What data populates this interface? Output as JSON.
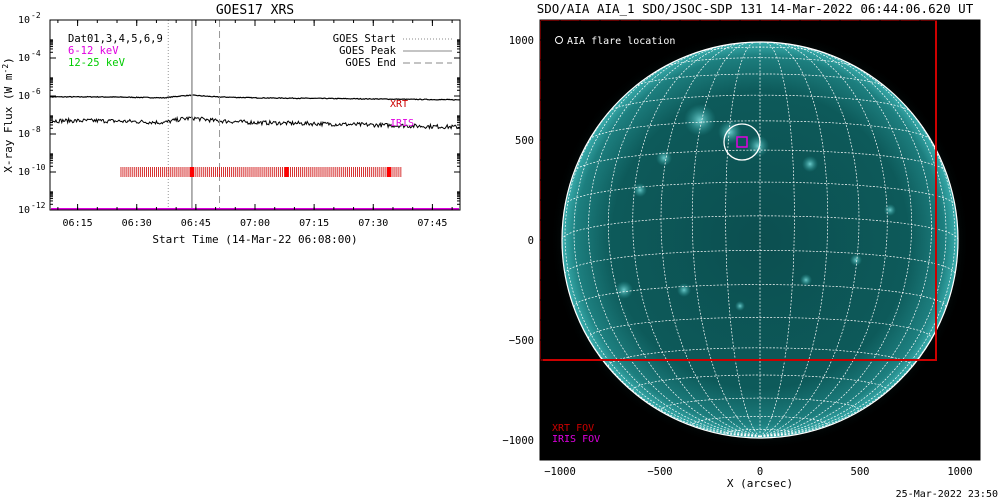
{
  "goes_panel": {
    "title": "GOES17 XRS",
    "xlabel": "Start Time (14-Mar-22 06:08:00)",
    "ylabel": "X-ray Flux (W m",
    "ylabel_sup": "-2",
    "ylabel_close": ")",
    "legend_left": [
      {
        "text": "Dat01,3,4,5,6,9",
        "color": "#000000"
      },
      {
        "text": "6-12 keV",
        "color": "#e000e0"
      },
      {
        "text": "12-25 keV",
        "color": "#00cc00"
      }
    ],
    "legend_right": [
      {
        "text": "GOES Start",
        "style": "dotted"
      },
      {
        "text": "GOES Peak",
        "style": "solid"
      },
      {
        "text": "GOES End",
        "style": "dashed"
      }
    ],
    "curve_labels": {
      "xrt": "XRT",
      "iris": "IRIS"
    },
    "colors": {
      "xrt": "#cc0000",
      "iris": "#e000e0",
      "event_lines": "#999999",
      "flux": "#000000"
    }
  },
  "aia_panel": {
    "title": "SDO/AIA AIA_1 SDO/JSOC-SDP 131 14-Mar-2022 06:44:06.620 UT",
    "flare_legend": "AIA flare location",
    "xlabel": "X (arcsec)",
    "fov_labels": {
      "xrt": "XRT FOV",
      "iris": "IRIS FOV"
    },
    "timestamp": "25-Mar-2022 23:50",
    "colors": {
      "disk": "#0a5a5a",
      "glow": "#3fbfbf",
      "grid": "#ffffff",
      "xrt_fov": "#cc0000",
      "iris_fov": "#e000e0"
    }
  },
  "chart_data": [
    {
      "type": "line",
      "title": "GOES17 XRS",
      "xlabel": "Start Time (14-Mar-22 06:08:00)",
      "ylabel": "X-ray Flux (W m^-2)",
      "y_scale": "log",
      "xlim": [
        "06:08",
        "07:52"
      ],
      "ylim": [
        1e-12,
        0.01
      ],
      "x_ticks": [
        "06:15",
        "06:30",
        "06:45",
        "07:00",
        "07:15",
        "07:30",
        "07:45"
      ],
      "y_ticks": [
        "10^-12",
        "10^-10",
        "10^-8",
        "10^-6",
        "10^-4",
        "10^-2"
      ],
      "series": [
        {
          "name": "6-12 keV",
          "x": [
            "06:08",
            "06:20",
            "06:30",
            "06:37",
            "06:41",
            "06:44",
            "06:50",
            "07:00",
            "07:15",
            "07:30",
            "07:45",
            "07:52"
          ],
          "values": [
            9e-07,
            9e-07,
            8.5e-07,
            8e-07,
            1e-06,
            1.1e-06,
            9e-07,
            8e-07,
            7.5e-07,
            7e-07,
            6.5e-07,
            6.3e-07
          ]
        },
        {
          "name": "12-25 keV",
          "x": [
            "06:08",
            "06:20",
            "06:30",
            "06:37",
            "06:41",
            "06:44",
            "06:50",
            "07:00",
            "07:15",
            "07:30",
            "07:45",
            "07:52"
          ],
          "values": [
            5e-08,
            5e-08,
            4.5e-08,
            4e-08,
            6e-08,
            7e-08,
            5e-08,
            4e-08,
            3.5e-08,
            3e-08,
            2.5e-08,
            2.3e-08
          ]
        }
      ],
      "events": {
        "goes_start": "06:38",
        "goes_peak": "06:44",
        "goes_end": "06:51"
      },
      "xrt_observations": {
        "start": "06:26",
        "end": "07:37",
        "value": 1e-10,
        "highlight_times": [
          "06:44",
          "07:08",
          "07:34"
        ]
      },
      "iris_level": 1e-12
    },
    {
      "type": "scatter",
      "title": "SDO/AIA AIA_1 SDO/JSOC-SDP 131 14-Mar-2022 06:44:06.620 UT",
      "xlabel": "X (arcsec)",
      "xlim": [
        -1100,
        1100
      ],
      "ylim": [
        -1100,
        1100
      ],
      "x_ticks": [
        -1000,
        -500,
        0,
        500,
        1000
      ],
      "y_ticks": [
        -1000,
        -500,
        0,
        500,
        1000
      ],
      "solar_radius_arcsec": 990,
      "flare_location": {
        "x": -90,
        "y": 490
      },
      "xrt_fov": {
        "x0": -1100,
        "x1": 880,
        "y0": -600,
        "y1": 1100
      },
      "iris_fov": {
        "x0": -115,
        "x1": -65,
        "y0": 465,
        "y1": 515
      }
    }
  ]
}
